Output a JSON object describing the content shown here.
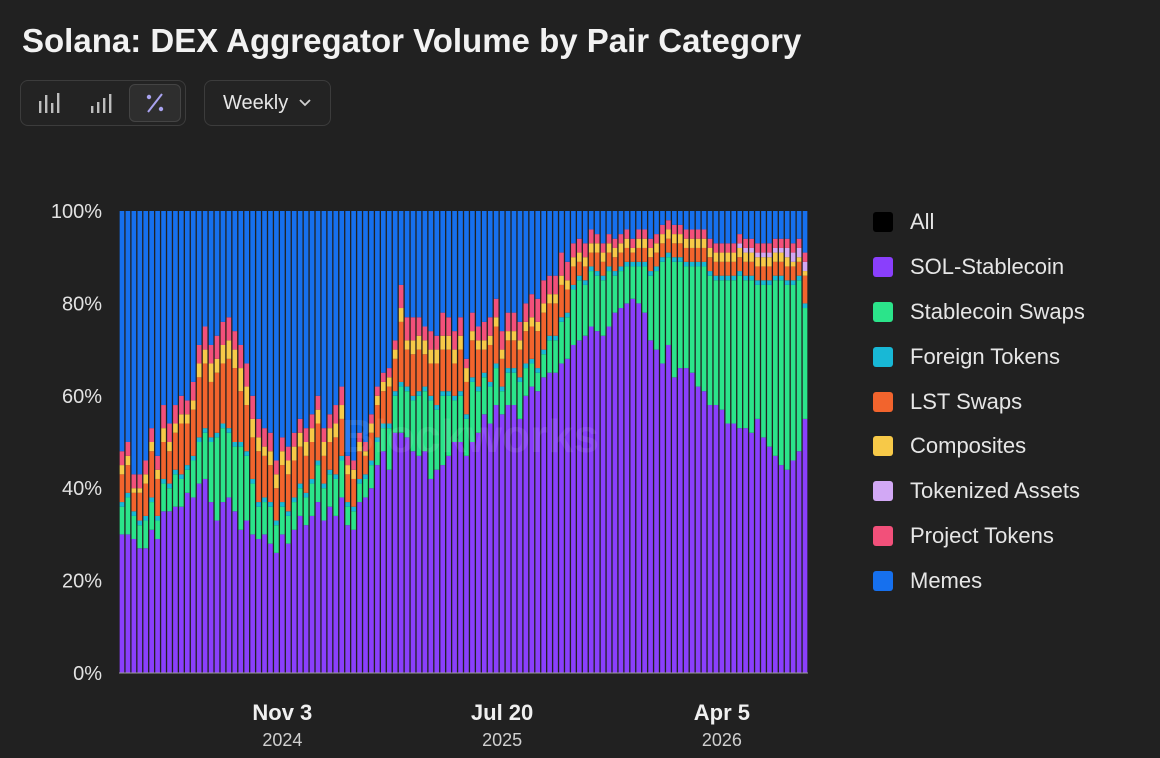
{
  "title": "Solana: DEX Aggregator Volume by Pair Category",
  "toolbar": {
    "chart_types": [
      {
        "icon": "bar-chart-icon",
        "active": false
      },
      {
        "icon": "stacked-bar-icon",
        "active": false
      },
      {
        "icon": "percent-icon",
        "active": true
      }
    ],
    "interval": "Weekly"
  },
  "colors": {
    "All": "#000000",
    "SOL-Stablecoin": "#8a3ffc",
    "Stablecoin Swaps": "#2be48a",
    "Foreign Tokens": "#18b8d6",
    "LST Swaps": "#f2642d",
    "Composites": "#f7c948",
    "Tokenized Assets": "#d2a8f5",
    "Project Tokens": "#f2507a",
    "Memes": "#1670ee"
  },
  "watermark": "Blockworks",
  "chart_data": {
    "type": "bar",
    "stacked": true,
    "normalized": true,
    "y_ticks": [
      "0%",
      "20%",
      "40%",
      "60%",
      "80%",
      "100%"
    ],
    "ylim": [
      0,
      100
    ],
    "grid": false,
    "legend_position": "right",
    "x_ticks": [
      {
        "label": "Nov 3",
        "year": "2024",
        "index": 27
      },
      {
        "label": "Jul 20",
        "year": "2025",
        "index": 64
      },
      {
        "label": "Apr 5",
        "year": "2026",
        "index": 101
      }
    ],
    "legend": [
      "All",
      "SOL-Stablecoin",
      "Stablecoin Swaps",
      "Foreign Tokens",
      "LST Swaps",
      "Composites",
      "Tokenized Assets",
      "Project Tokens",
      "Memes"
    ],
    "series_names": [
      "SOL-Stablecoin",
      "Stablecoin Swaps",
      "Foreign Tokens",
      "LST Swaps",
      "Composites",
      "Tokenized Assets",
      "Project Tokens"
    ],
    "remainder_series": "Memes",
    "bars": [
      [
        30,
        6,
        1,
        6,
        2,
        0,
        3
      ],
      [
        30,
        8,
        1,
        6,
        2,
        0,
        3
      ],
      [
        29,
        5,
        1,
        4,
        1,
        0,
        3
      ],
      [
        27,
        5,
        1,
        6,
        1,
        0,
        3
      ],
      [
        27,
        6,
        1,
        7,
        2,
        0,
        3
      ],
      [
        31,
        6,
        1,
        10,
        2,
        0,
        3
      ],
      [
        29,
        4,
        1,
        8,
        2,
        0,
        3
      ],
      [
        35,
        6,
        1,
        8,
        3,
        0,
        5
      ],
      [
        35,
        5,
        1,
        7,
        2,
        0,
        4
      ],
      [
        36,
        7,
        1,
        8,
        2,
        0,
        4
      ],
      [
        36,
        6,
        1,
        11,
        2,
        0,
        4
      ],
      [
        39,
        5,
        1,
        9,
        2,
        0,
        3
      ],
      [
        38,
        8,
        1,
        10,
        2,
        0,
        4
      ],
      [
        41,
        9,
        1,
        13,
        3,
        0,
        4
      ],
      [
        42,
        10,
        1,
        14,
        3,
        0,
        5
      ],
      [
        37,
        13,
        1,
        12,
        4,
        0,
        4
      ],
      [
        33,
        18,
        1,
        13,
        3,
        0,
        5
      ],
      [
        37,
        16,
        1,
        13,
        4,
        0,
        5
      ],
      [
        38,
        14,
        1,
        15,
        4,
        0,
        5
      ],
      [
        35,
        14,
        1,
        16,
        4,
        0,
        4
      ],
      [
        31,
        18,
        1,
        11,
        5,
        0,
        5
      ],
      [
        33,
        14,
        1,
        10,
        4,
        0,
        5
      ],
      [
        30,
        11,
        1,
        9,
        4,
        0,
        5
      ],
      [
        29,
        7,
        1,
        11,
        3,
        0,
        4
      ],
      [
        30,
        7,
        1,
        9,
        2,
        0,
        4
      ],
      [
        28,
        8,
        1,
        8,
        3,
        0,
        4
      ],
      [
        26,
        6,
        1,
        7,
        3,
        0,
        3
      ],
      [
        30,
        6,
        1,
        8,
        3,
        0,
        3
      ],
      [
        28,
        6,
        1,
        8,
        3,
        0,
        3
      ],
      [
        31,
        6,
        1,
        8,
        3,
        0,
        3
      ],
      [
        34,
        6,
        1,
        8,
        3,
        0,
        3
      ],
      [
        32,
        6,
        1,
        8,
        3,
        0,
        3
      ],
      [
        34,
        7,
        1,
        8,
        3,
        0,
        3
      ],
      [
        37,
        8,
        1,
        8,
        3,
        0,
        3
      ],
      [
        33,
        7,
        1,
        6,
        3,
        0,
        3
      ],
      [
        36,
        7,
        1,
        6,
        3,
        0,
        3
      ],
      [
        34,
        8,
        1,
        8,
        3,
        0,
        4
      ],
      [
        38,
        8,
        1,
        8,
        3,
        0,
        4
      ],
      [
        32,
        4,
        1,
        6,
        2,
        0,
        2
      ],
      [
        31,
        4,
        1,
        6,
        2,
        0,
        2
      ],
      [
        37,
        4,
        1,
        6,
        2,
        0,
        2
      ],
      [
        38,
        4,
        1,
        4,
        1,
        0,
        2
      ],
      [
        40,
        5,
        1,
        6,
        2,
        0,
        2
      ],
      [
        45,
        5,
        1,
        7,
        2,
        0,
        2
      ],
      [
        48,
        5,
        1,
        7,
        2,
        0,
        2
      ],
      [
        44,
        9,
        1,
        8,
        2,
        0,
        2
      ],
      [
        52,
        8,
        1,
        7,
        2,
        0,
        2
      ],
      [
        52,
        10,
        1,
        13,
        3,
        0,
        5
      ],
      [
        51,
        10,
        1,
        8,
        2,
        0,
        5
      ],
      [
        48,
        11,
        1,
        9,
        3,
        0,
        5
      ],
      [
        47,
        13,
        1,
        9,
        3,
        0,
        4
      ],
      [
        48,
        13,
        1,
        7,
        3,
        0,
        3
      ],
      [
        42,
        17,
        1,
        7,
        3,
        0,
        4
      ],
      [
        44,
        13,
        1,
        9,
        3,
        0,
        3
      ],
      [
        45,
        15,
        1,
        9,
        3,
        0,
        5
      ],
      [
        47,
        13,
        1,
        9,
        3,
        0,
        4
      ],
      [
        50,
        9,
        1,
        7,
        3,
        0,
        4
      ],
      [
        50,
        10,
        1,
        9,
        3,
        0,
        4
      ],
      [
        47,
        8,
        1,
        7,
        3,
        0,
        2
      ],
      [
        50,
        13,
        1,
        8,
        2,
        0,
        4
      ],
      [
        52,
        9,
        1,
        8,
        2,
        0,
        3
      ],
      [
        56,
        8,
        1,
        5,
        2,
        0,
        4
      ],
      [
        54,
        8,
        1,
        8,
        2,
        0,
        4
      ],
      [
        58,
        8,
        1,
        8,
        2,
        0,
        4
      ],
      [
        56,
        5,
        1,
        6,
        2,
        0,
        4
      ],
      [
        58,
        7,
        1,
        6,
        2,
        0,
        4
      ],
      [
        58,
        7,
        1,
        6,
        2,
        0,
        4
      ],
      [
        55,
        8,
        1,
        6,
        2,
        0,
        4
      ],
      [
        60,
        6,
        1,
        7,
        2,
        0,
        4
      ],
      [
        62,
        5,
        1,
        7,
        2,
        0,
        5
      ],
      [
        61,
        4,
        1,
        8,
        2,
        0,
        5
      ],
      [
        64,
        5,
        1,
        8,
        2,
        0,
        5
      ],
      [
        65,
        7,
        1,
        7,
        2,
        0,
        4
      ],
      [
        65,
        7,
        1,
        7,
        2,
        0,
        4
      ],
      [
        67,
        9,
        1,
        7,
        2,
        0,
        5
      ],
      [
        68,
        9,
        1,
        5,
        2,
        0,
        4
      ],
      [
        71,
        12,
        1,
        4,
        2,
        0,
        3
      ],
      [
        72,
        13,
        1,
        3,
        2,
        0,
        3
      ],
      [
        73,
        11,
        1,
        3,
        2,
        0,
        3
      ],
      [
        75,
        12,
        1,
        3,
        2,
        0,
        3
      ],
      [
        74,
        12,
        1,
        4,
        2,
        0,
        2
      ],
      [
        73,
        12,
        1,
        3,
        2,
        0,
        2
      ],
      [
        75,
        12,
        1,
        3,
        2,
        0,
        2
      ],
      [
        78,
        8,
        1,
        3,
        2,
        0,
        2
      ],
      [
        79,
        8,
        1,
        3,
        2,
        0,
        2
      ],
      [
        80,
        8,
        1,
        3,
        2,
        0,
        2
      ],
      [
        81,
        7,
        1,
        2,
        1,
        0,
        2
      ],
      [
        80,
        8,
        1,
        3,
        2,
        0,
        2
      ],
      [
        78,
        10,
        1,
        3,
        2,
        0,
        2
      ],
      [
        72,
        14,
        1,
        3,
        2,
        0,
        2
      ],
      [
        70,
        17,
        1,
        3,
        2,
        0,
        2
      ],
      [
        67,
        22,
        1,
        3,
        2,
        0,
        2
      ],
      [
        71,
        19,
        1,
        3,
        2,
        0,
        2
      ],
      [
        64,
        25,
        1,
        3,
        2,
        0,
        2
      ],
      [
        66,
        23,
        1,
        3,
        2,
        0,
        2
      ],
      [
        66,
        22,
        1,
        3,
        2,
        0,
        2
      ],
      [
        65,
        23,
        1,
        3,
        2,
        0,
        2
      ],
      [
        62,
        26,
        1,
        3,
        2,
        0,
        2
      ],
      [
        61,
        27,
        1,
        3,
        2,
        0,
        2
      ],
      [
        58,
        28,
        1,
        3,
        2,
        0,
        2
      ],
      [
        58,
        27,
        1,
        3,
        2,
        0,
        2
      ],
      [
        57,
        28,
        1,
        3,
        2,
        0,
        2
      ],
      [
        54,
        31,
        1,
        3,
        2,
        0,
        2
      ],
      [
        54,
        31,
        1,
        3,
        2,
        0,
        2
      ],
      [
        53,
        33,
        1,
        3,
        2,
        1,
        2
      ],
      [
        53,
        32,
        1,
        3,
        2,
        1,
        2
      ],
      [
        52,
        33,
        1,
        3,
        2,
        1,
        2
      ],
      [
        55,
        29,
        1,
        3,
        2,
        1,
        2
      ],
      [
        51,
        33,
        1,
        3,
        2,
        1,
        2
      ],
      [
        49,
        35,
        1,
        3,
        2,
        1,
        2
      ],
      [
        47,
        38,
        1,
        3,
        2,
        1,
        2
      ],
      [
        45,
        40,
        1,
        3,
        2,
        1,
        2
      ],
      [
        44,
        40,
        1,
        3,
        2,
        2,
        2
      ],
      [
        46,
        38,
        1,
        3,
        1,
        2,
        2
      ],
      [
        48,
        37,
        1,
        3,
        1,
        2,
        2
      ],
      [
        55,
        24,
        1,
        6,
        1,
        2,
        2
      ]
    ]
  }
}
